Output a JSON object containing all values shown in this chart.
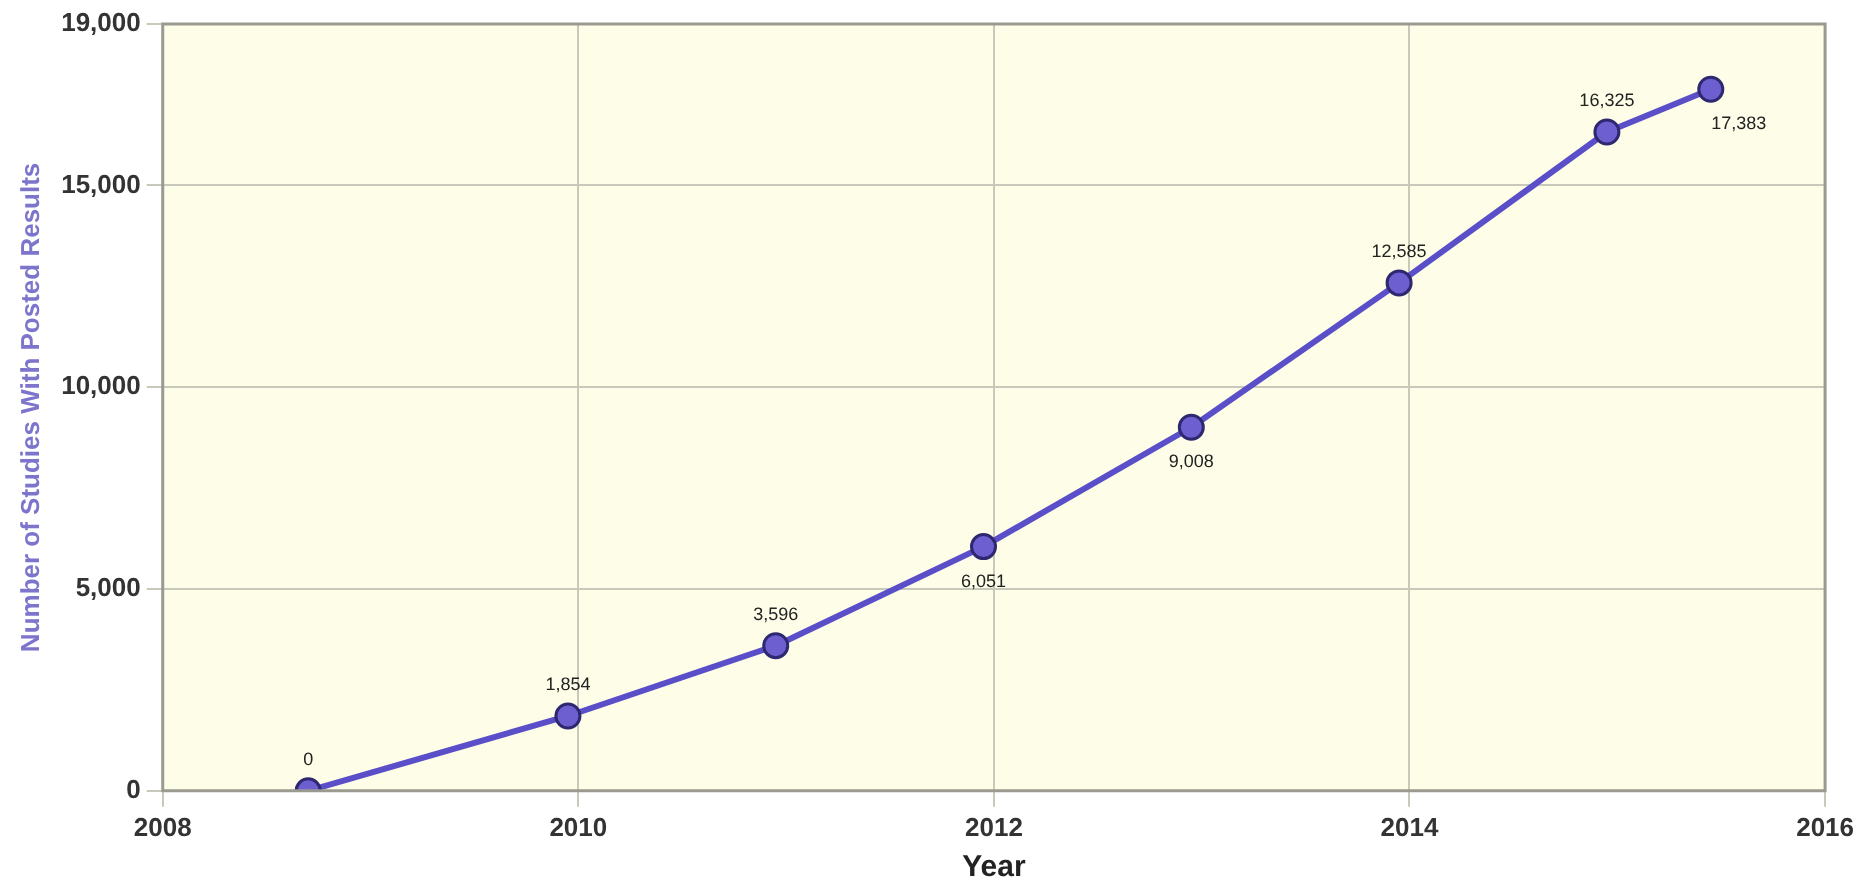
{
  "chart_data": {
    "type": "line",
    "xlabel": "Year",
    "ylabel": "Number of Studies With Posted Results",
    "x": [
      2008.7,
      2009.95,
      2010.95,
      2011.95,
      2012.95,
      2013.95,
      2014.95,
      2015.45
    ],
    "series": [
      {
        "color": "#5a4fc8",
        "values": [
          0,
          1854,
          3596,
          6051,
          9008,
          12585,
          16325,
          17383
        ],
        "value_labels": [
          "0",
          "1,854",
          "3,596",
          "6,051",
          "9,008",
          "12,585",
          "16,325",
          "17,383"
        ]
      }
    ],
    "xlim": [
      2008,
      2016
    ],
    "xticks": [
      2008,
      2010,
      2012,
      2014,
      2016
    ],
    "ylim": [
      0,
      19000
    ],
    "yticks": [
      {
        "value": 0,
        "label": "0"
      },
      {
        "value": 5000,
        "label": "5,000"
      },
      {
        "value": 10000,
        "label": "10,000"
      },
      {
        "value": 15000,
        "label": "15,000"
      },
      {
        "value": 19000,
        "label": "19,000"
      }
    ],
    "grid": true,
    "marker": "circle",
    "line_style": "solid",
    "legend": false
  }
}
